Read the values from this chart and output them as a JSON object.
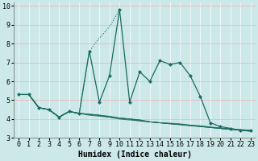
{
  "xlabel": "Humidex (Indice chaleur)",
  "bg_color": "#cce8e8",
  "line_color": "#1a6b60",
  "grid_white": "#ffffff",
  "grid_pink": "#f0b0b0",
  "xlim": [
    -0.5,
    23.5
  ],
  "ylim": [
    3.0,
    10.2
  ],
  "yticks": [
    3,
    4,
    5,
    6,
    7,
    8,
    9,
    10
  ],
  "xticks": [
    0,
    1,
    2,
    3,
    4,
    5,
    6,
    7,
    8,
    9,
    10,
    11,
    12,
    13,
    14,
    15,
    16,
    17,
    18,
    19,
    20,
    21,
    22,
    23
  ],
  "main_series": [
    5.3,
    5.3,
    4.6,
    4.5,
    4.1,
    4.4,
    4.3,
    7.6,
    4.9,
    6.3,
    9.8,
    4.9,
    6.5,
    6.0,
    7.1,
    6.9,
    7.0,
    6.3,
    5.2,
    3.8,
    3.6,
    3.5,
    3.4,
    3.4
  ],
  "dotted_x": [
    0,
    1,
    2,
    3,
    4,
    5,
    6,
    7,
    8,
    9,
    10
  ],
  "dotted_y": [
    5.3,
    5.3,
    4.6,
    4.5,
    4.1,
    4.4,
    4.3,
    7.6,
    8.3,
    8.9,
    9.8
  ],
  "flat_series": [
    [
      5.3,
      5.3,
      4.6,
      4.5,
      4.1,
      4.4,
      4.3,
      4.2,
      4.15,
      4.1,
      4.0,
      3.95,
      3.9,
      3.85,
      3.8,
      3.75,
      3.7,
      3.65,
      3.6,
      3.55,
      3.5,
      3.45,
      3.4,
      3.35
    ],
    [
      5.3,
      5.3,
      4.6,
      4.5,
      4.1,
      4.4,
      4.3,
      4.25,
      4.2,
      4.15,
      4.05,
      4.0,
      3.9,
      3.85,
      3.8,
      3.75,
      3.7,
      3.65,
      3.6,
      3.55,
      3.5,
      3.45,
      3.4,
      3.35
    ],
    [
      5.3,
      5.3,
      4.6,
      4.5,
      4.1,
      4.4,
      4.3,
      4.25,
      4.2,
      4.1,
      4.05,
      4.0,
      3.95,
      3.85,
      3.8,
      3.75,
      3.72,
      3.66,
      3.62,
      3.56,
      3.5,
      3.46,
      3.42,
      3.38
    ],
    [
      5.3,
      5.3,
      4.6,
      4.5,
      4.1,
      4.4,
      4.3,
      4.25,
      4.2,
      4.1,
      4.05,
      4.0,
      3.95,
      3.85,
      3.8,
      3.78,
      3.74,
      3.68,
      3.64,
      3.58,
      3.52,
      3.48,
      3.44,
      3.4
    ]
  ],
  "marker_size": 2.5,
  "lw_main": 0.9,
  "lw_flat": 0.7,
  "lw_dot": 0.8,
  "font_size_label": 7,
  "font_size_tick": 6
}
